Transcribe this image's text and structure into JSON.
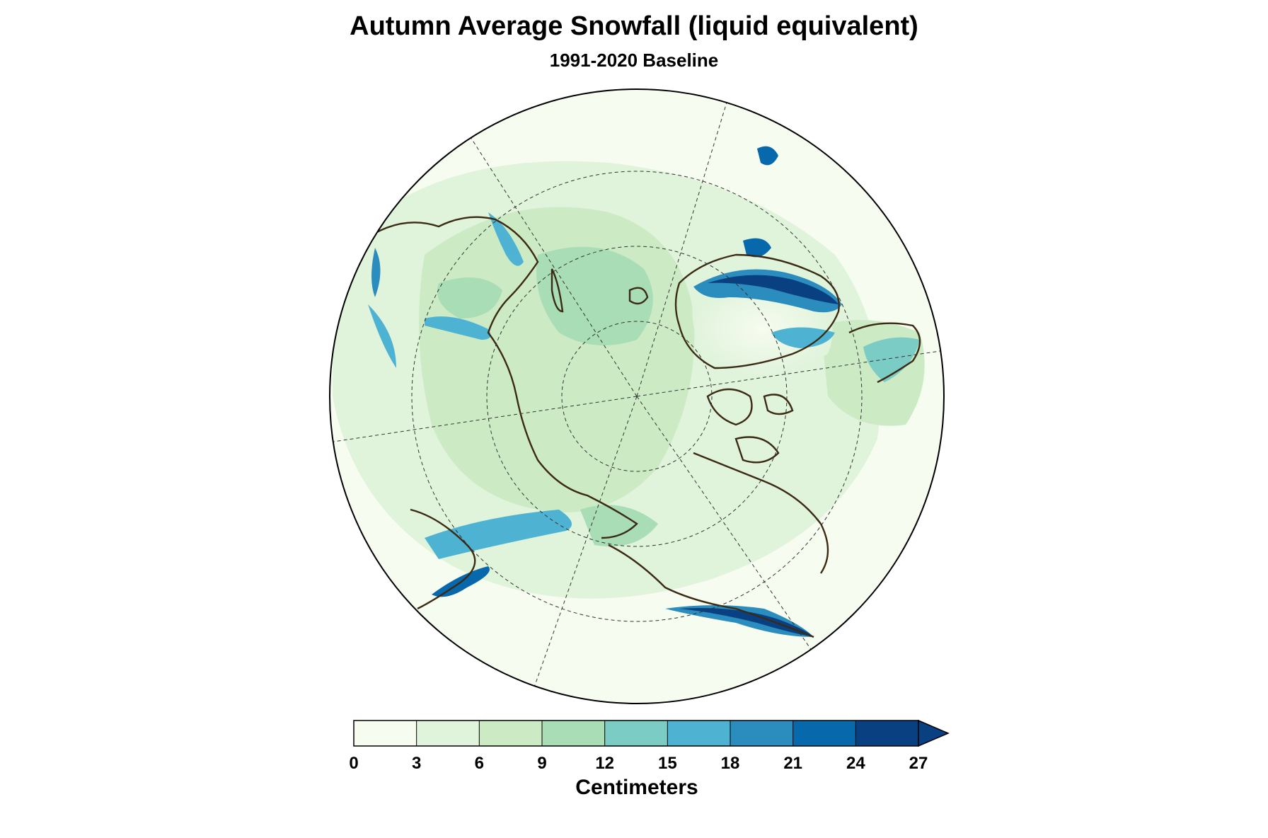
{
  "title": "Autumn Average Snowfall (liquid equivalent)",
  "subtitle": "1991-2020 Baseline",
  "colorbar": {
    "label": "Centimeters",
    "ticks": [
      "0",
      "3",
      "6",
      "9",
      "12",
      "15",
      "18",
      "21",
      "24",
      "27"
    ],
    "colors": [
      "#f7fcf0",
      "#e0f3db",
      "#ccebc5",
      "#a8ddb5",
      "#7bccc4",
      "#4eb3d3",
      "#2b8cbe",
      "#0868ac",
      "#084081"
    ],
    "extend": "max"
  },
  "map": {
    "projection": "north-polar-stereographic",
    "coastline_color": "#3b2a14",
    "graticule": "dashed"
  }
}
